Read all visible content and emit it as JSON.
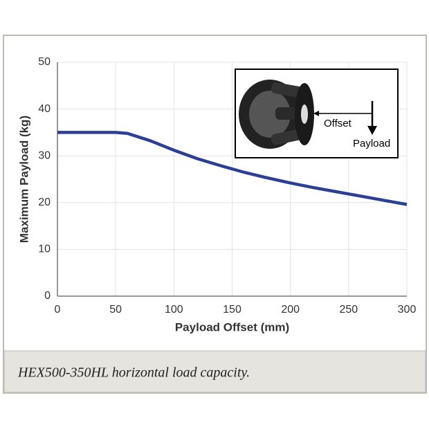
{
  "chart_data": {
    "type": "line",
    "x_label": "Payload Offset (mm)",
    "y_label": "Maximum Payload (kg)",
    "x": [
      0,
      50,
      60,
      80,
      100,
      120,
      140,
      160,
      180,
      200,
      220,
      240,
      260,
      280,
      300
    ],
    "series": [
      {
        "color": "#2b3f94",
        "values": [
          35,
          35,
          34.8,
          33.2,
          31.2,
          29.4,
          27.9,
          26.5,
          25.3,
          24.2,
          23.2,
          22.3,
          21.4,
          20.5,
          19.6
        ]
      }
    ],
    "xlim": [
      0,
      300
    ],
    "xticks": [
      0,
      50,
      100,
      150,
      200,
      250,
      300
    ],
    "ylim": [
      0,
      50
    ],
    "yticks": [
      0,
      10,
      20,
      30,
      40,
      50
    ],
    "grid": true,
    "annotations": [
      "Offset",
      "Payload"
    ]
  },
  "caption": "HEX500-350HL horizontal load capacity."
}
